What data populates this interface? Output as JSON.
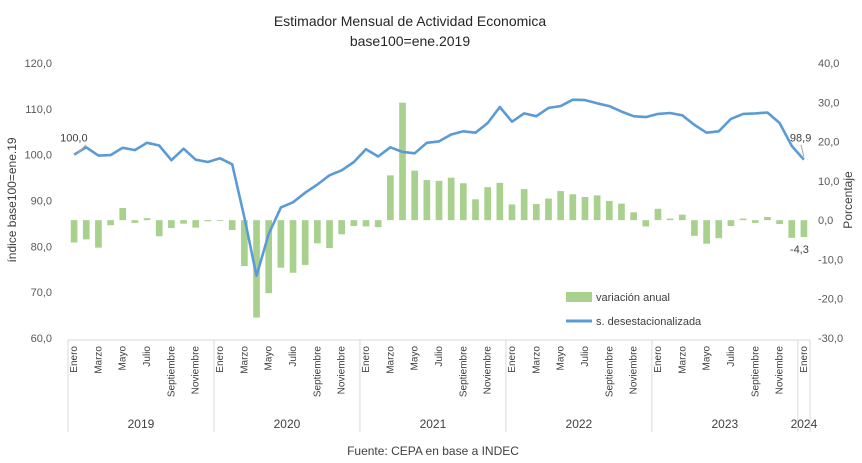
{
  "chart_data": {
    "type": "bar+line",
    "title": "Estimador Mensual de Actividad Economica",
    "subtitle": "base100=ene.2019",
    "ylabel_left": "índice base100=ene.19",
    "ylabel_right": "Porcentaje",
    "ylim_left": [
      60,
      120
    ],
    "ylim_right": [
      -30,
      40
    ],
    "left_ticks": [
      "120,0",
      "110,0",
      "100,0",
      "90,0",
      "80,0",
      "70,0",
      "60,0"
    ],
    "right_ticks": [
      "40,0",
      "30,0",
      "20,0",
      "10,0",
      "0,0",
      "-10,0",
      "-20,0",
      "-30,0"
    ],
    "grid": false,
    "legend_position": "inside-bottom-right",
    "source": "Fuente: CEPA en base a INDEC",
    "month_labels": [
      "Enero",
      "Marzo",
      "Mayo",
      "Julio",
      "Septiembre",
      "Noviembre"
    ],
    "years": [
      "2019",
      "2020",
      "2021",
      "2022",
      "2023",
      "2024"
    ],
    "months_per_year": [
      12,
      12,
      12,
      12,
      12,
      1
    ],
    "annotations": {
      "first_value": "100,0",
      "last_value": "98,9",
      "last_variation": "-4,3"
    },
    "series": [
      {
        "name": "variación anual",
        "type": "bar",
        "axis": "right",
        "color": "#a9d18e",
        "values": [
          -5.7,
          -4.9,
          -7.0,
          -1.3,
          3.1,
          -0.7,
          0.5,
          -4.1,
          -2.0,
          -0.9,
          -1.9,
          -0.3,
          -0.2,
          -2.5,
          -11.7,
          -24.8,
          -18.6,
          -12.1,
          -13.4,
          -11.4,
          -5.9,
          -7.1,
          -3.6,
          -1.5,
          -1.6,
          -1.8,
          11.4,
          29.9,
          12.6,
          10.2,
          10.0,
          10.8,
          9.4,
          5.3,
          8.4,
          9.5,
          4.0,
          7.9,
          4.1,
          5.5,
          7.4,
          6.6,
          5.9,
          6.3,
          4.9,
          4.2,
          2.0,
          -1.6,
          2.9,
          0.4,
          1.4,
          -4.0,
          -6.0,
          -4.6,
          -1.5,
          0.4,
          -0.7,
          0.8,
          -1.0,
          -4.5,
          -4.3
        ]
      },
      {
        "name": "s. desestacionalizada",
        "type": "line",
        "axis": "left",
        "color": "#5b9bd5",
        "values": [
          100.0,
          101.6,
          99.8,
          99.9,
          101.5,
          101.0,
          102.6,
          102.0,
          98.8,
          101.3,
          98.9,
          98.4,
          99.2,
          97.9,
          86.3,
          73.6,
          82.7,
          88.5,
          89.6,
          91.7,
          93.5,
          95.5,
          96.6,
          98.4,
          101.2,
          99.6,
          101.6,
          100.6,
          100.3,
          102.6,
          102.9,
          104.4,
          105.1,
          104.8,
          106.9,
          110.4,
          107.2,
          109.0,
          108.4,
          110.2,
          110.6,
          112.0,
          111.9,
          111.2,
          110.6,
          109.4,
          108.4,
          108.2,
          108.9,
          109.1,
          108.6,
          106.5,
          104.8,
          105.1,
          107.8,
          108.9,
          109.0,
          109.2,
          106.9,
          101.9,
          98.9
        ]
      }
    ]
  }
}
